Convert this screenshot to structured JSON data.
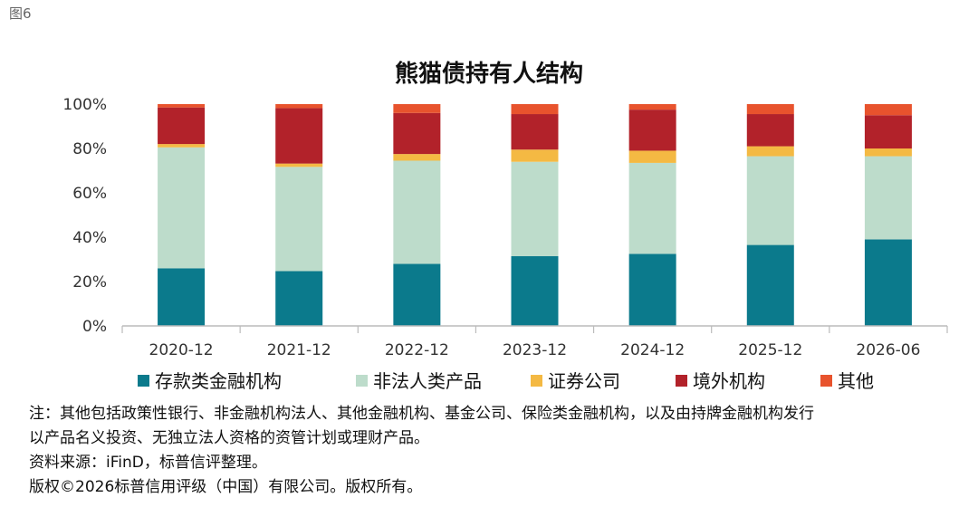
{
  "figure_label": "图6",
  "chart_data": {
    "type": "bar",
    "stacked": true,
    "title": "熊猫债持有人结构",
    "categories": [
      "2020-12",
      "2021-12",
      "2022-12",
      "2023-12",
      "2024-12",
      "2025-12",
      "2026-06"
    ],
    "ylim": [
      0,
      100
    ],
    "yticks": [
      "0%",
      "20%",
      "40%",
      "60%",
      "80%",
      "100%"
    ],
    "grid": false,
    "legend_position": "bottom",
    "series": [
      {
        "name": "存款类金融机构",
        "color": "#0b7a8c",
        "values": [
          26,
          24.7,
          28,
          31.5,
          32.5,
          36.5,
          39
        ]
      },
      {
        "name": "非法人类产品",
        "color": "#bddccb",
        "values": [
          54.5,
          47,
          46.5,
          42.5,
          41,
          40,
          37.5
        ]
      },
      {
        "name": "证券公司",
        "color": "#f4b943",
        "values": [
          1.5,
          1.5,
          3,
          5.5,
          5.5,
          4.5,
          3.5
        ]
      },
      {
        "name": "境外机构",
        "color": "#b2222a",
        "values": [
          16.5,
          25,
          18.5,
          16,
          18.5,
          14.5,
          15
        ]
      },
      {
        "name": "其他",
        "color": "#e8532d",
        "values": [
          1.5,
          1.8,
          4,
          4.5,
          2.5,
          4.5,
          5
        ]
      }
    ]
  },
  "notes": [
    "注：其他包括政策性银行、非金融机构法人、其他金融机构、基金公司、保险类金融机构，以及由持牌金融机构发行",
    "以产品名义投资、无独立法人资格的资管计划或理财产品。",
    "资料来源：iFinD，标普信评整理。",
    "版权©2026标普信用评级（中国）有限公司。版权所有。"
  ]
}
